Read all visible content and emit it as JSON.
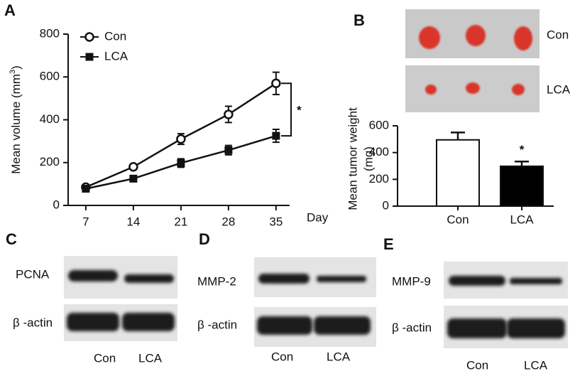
{
  "panel_labels": [
    "A",
    "B",
    "C",
    "D",
    "E"
  ],
  "chart_data": [
    {
      "type": "line",
      "x": [
        7,
        14,
        21,
        28,
        35
      ],
      "xlim": [
        4.4,
        37
      ],
      "xticks": [
        7,
        14,
        21,
        28,
        35
      ],
      "ylim": [
        0,
        800
      ],
      "yticks": [
        0,
        200,
        400,
        600,
        800
      ],
      "xlabel": "Day",
      "ylabel": [
        "Mean volume (mm",
        "3",
        ")"
      ],
      "annotation": "*",
      "series": [
        {
          "name": "Con",
          "color": "#111111",
          "marker": "open-circle",
          "values": [
            85,
            180,
            310,
            425,
            570
          ],
          "errors": [
            8,
            10,
            25,
            38,
            52
          ]
        },
        {
          "name": "LCA",
          "color": "#111111",
          "marker": "filled-square",
          "values": [
            78,
            125,
            198,
            258,
            325
          ],
          "errors": [
            5,
            8,
            20,
            22,
            30
          ]
        }
      ]
    },
    {
      "type": "bar",
      "categories": [
        "Con",
        "LCA"
      ],
      "values": [
        495,
        298
      ],
      "errors": [
        55,
        35
      ],
      "colors": [
        "#ffffff",
        "#000000"
      ],
      "ylim": [
        0,
        600
      ],
      "yticks": [
        0,
        200,
        400,
        600
      ],
      "ylabel": [
        "Mean tumor weight",
        "(mg)"
      ],
      "annotation": "*"
    }
  ],
  "photo": {
    "rows": [
      "Con",
      "LCA"
    ]
  },
  "blots": [
    {
      "rows": [
        "PCNA",
        "β -actin"
      ],
      "lanes": [
        "Con",
        "LCA"
      ]
    },
    {
      "rows": [
        "MMP-2",
        "β -actin"
      ],
      "lanes": [
        "Con",
        "LCA"
      ]
    },
    {
      "rows": [
        "MMP-9",
        "β -actin"
      ],
      "lanes": [
        "Con",
        "LCA"
      ]
    }
  ]
}
